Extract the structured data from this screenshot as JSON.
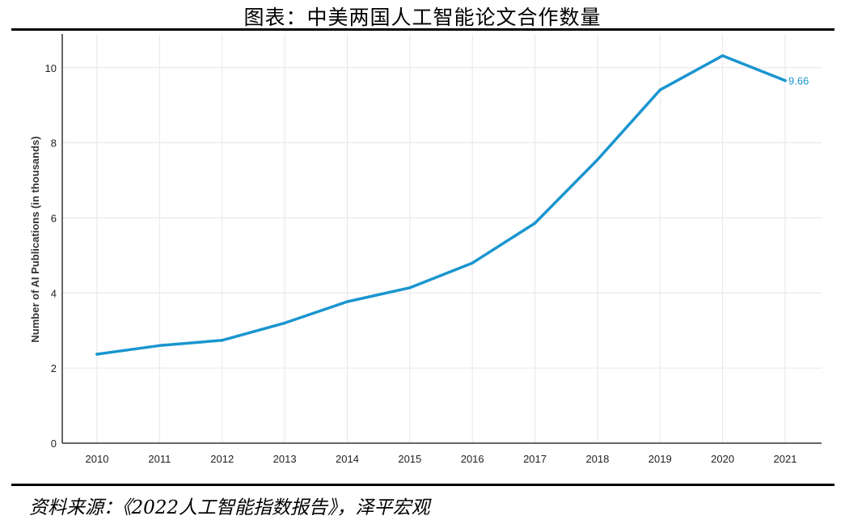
{
  "title": "图表：中美两国人工智能论文合作数量",
  "source": "资料来源：《2022人工智能指数报告》，泽平宏观",
  "colors": {
    "line": "#1a95cf",
    "grid": "#e6e6e6",
    "axis": "#333333"
  },
  "chart_data": {
    "type": "line",
    "title": "",
    "xlabel": "",
    "ylabel": "Number of AI Publications (in thousands)",
    "x": [
      2010,
      2011,
      2012,
      2013,
      2014,
      2015,
      2016,
      2017,
      2018,
      2019,
      2020,
      2021
    ],
    "series": [
      {
        "values": [
          2.37,
          2.6,
          2.74,
          3.2,
          3.77,
          4.14,
          4.8,
          5.86,
          7.55,
          9.41,
          10.32,
          9.66
        ]
      }
    ],
    "yticks": [
      0,
      2,
      4,
      6,
      8,
      10
    ],
    "ylim": [
      0,
      10.9
    ],
    "grid": true,
    "data_labels": [
      {
        "x": 2021,
        "text": "9.66"
      }
    ]
  }
}
